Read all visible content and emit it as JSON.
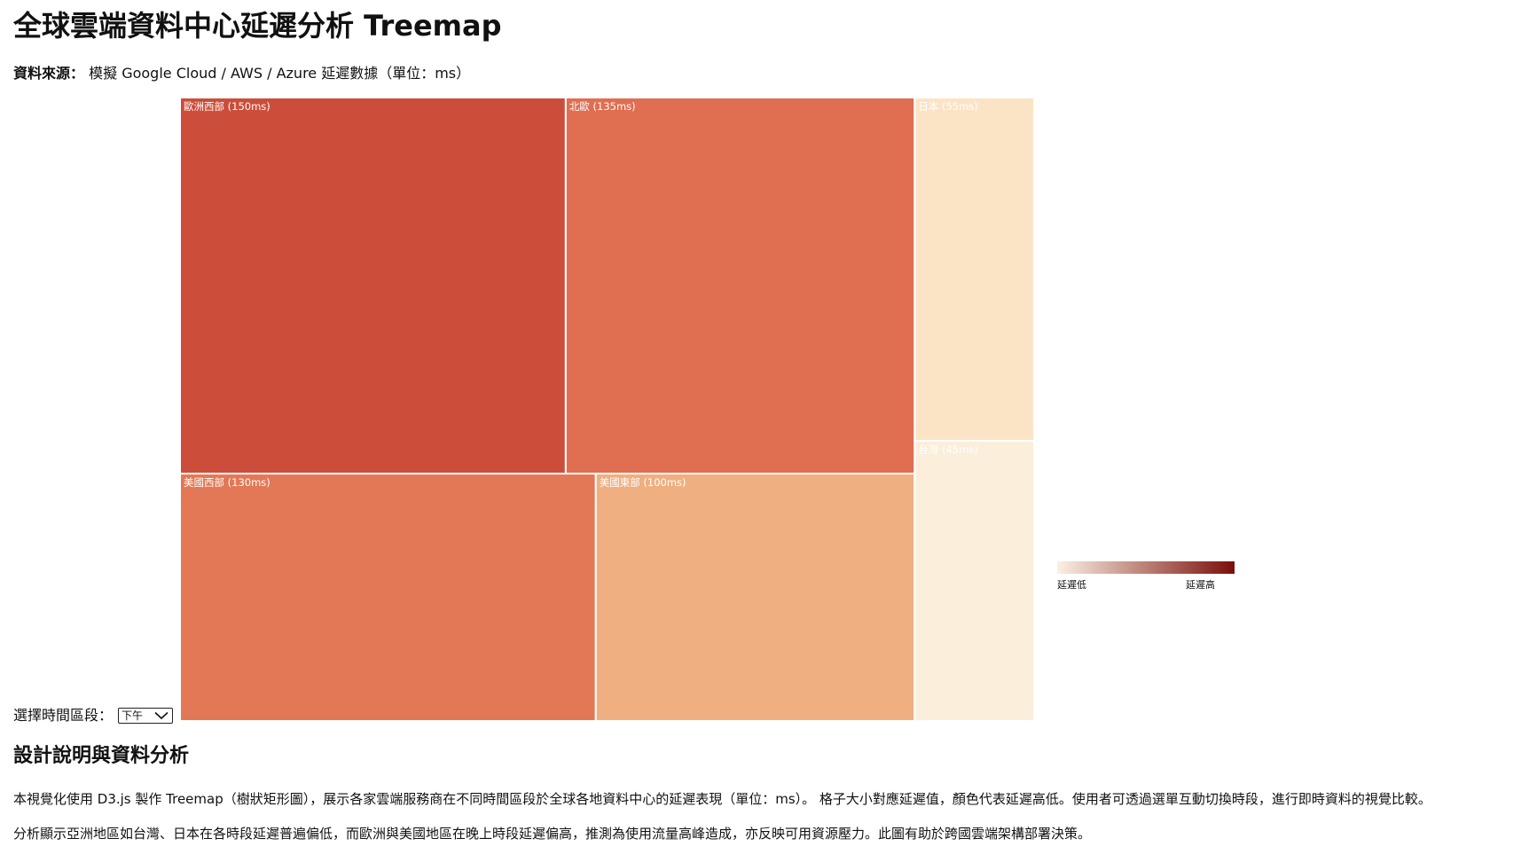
{
  "page": {
    "title": "全球雲端資料中心延遲分析 Treemap",
    "source_label": "資料來源：",
    "source_text": "模擬 Google Cloud / AWS / Azure 延遲數據（單位：ms）"
  },
  "controls": {
    "time_label": "選擇時間區段：",
    "selected_period": "下午"
  },
  "legend": {
    "low_label": "延遲低",
    "high_label": "延遲高",
    "color_low": "#fbf0e3",
    "color_high": "#7a0f0a"
  },
  "description": {
    "heading": "設計說明與資料分析",
    "paragraph_1": "本視覺化使用 D3.js 製作 Treemap（樹狀矩形圖），展示各家雲端服務商在不同時間區段於全球各地資料中心的延遲表現（單位：ms）。 格子大小對應延遲值，顏色代表延遲高低。使用者可透過選單互動切換時段，進行即時資料的視覺比較。",
    "paragraph_2": "分析顯示亞洲地區如台灣、日本在各時段延遲普遍偏低，而歐洲與美國地區在晚上時段延遲偏高，推測為使用流量高峰造成，亦反映可用資源壓力。此圖有助於跨國雲端架構部署決策。"
  },
  "chart_data": {
    "type": "treemap",
    "unit": "ms",
    "items": [
      {
        "name": "歐洲西部",
        "value": 150,
        "label": "歐洲西部 (150ms)",
        "color": "#cc4e3a"
      },
      {
        "name": "北歐",
        "value": 135,
        "label": "北歐 (135ms)",
        "color": "#e06e51"
      },
      {
        "name": "日本",
        "value": 55,
        "label": "日本 (55ms)",
        "color": "#fbe4c5"
      },
      {
        "name": "美國西部",
        "value": 130,
        "label": "美國西部 (130ms)",
        "color": "#e27856"
      },
      {
        "name": "美國東部",
        "value": 100,
        "label": "美國東部 (100ms)",
        "color": "#efaf80"
      },
      {
        "name": "台灣",
        "value": 45,
        "label": "台灣 (45ms)",
        "color": "#fbeedb"
      }
    ]
  }
}
